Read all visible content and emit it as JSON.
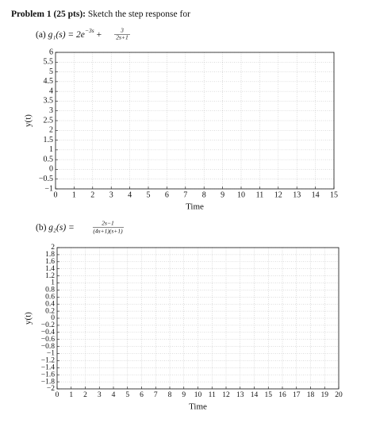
{
  "header": {
    "title": "Problem 1 (25 pts):",
    "text": "Sketch the step response for"
  },
  "chart_data": [
    {
      "type": "line",
      "part": "(a)",
      "function": {
        "lhs": "g₁(s) = 2e",
        "exponent": "−3s",
        "plus": "+",
        "numerator": "3",
        "denominator": "2s+1"
      },
      "xlabel": "Time",
      "ylabel": "y(t)",
      "xlim": [
        0,
        15
      ],
      "ylim": [
        -1,
        6
      ],
      "xticks": [
        0,
        1,
        2,
        3,
        4,
        5,
        6,
        7,
        8,
        9,
        10,
        11,
        12,
        13,
        14,
        15
      ],
      "yticks": [
        {
          "value": -1,
          "label": "−1"
        },
        {
          "value": -0.5,
          "label": "−0.5"
        },
        0,
        0.5,
        1,
        1.5,
        2,
        2.5,
        3,
        3.5,
        4,
        4.5,
        5,
        5.5,
        6
      ],
      "grid": true
    },
    {
      "type": "line",
      "part": "(b)",
      "function": {
        "lhs": "g₂(s) =",
        "numerator": "2s−1",
        "denominator": "(4s+1)(s+1)"
      },
      "xlabel": "Time",
      "ylabel": "y(t)",
      "xlim": [
        0,
        20
      ],
      "ylim": [
        -2,
        2
      ],
      "xticks": [
        0,
        1,
        2,
        3,
        4,
        5,
        6,
        7,
        8,
        9,
        10,
        11,
        12,
        13,
        14,
        15,
        16,
        17,
        18,
        19,
        20
      ],
      "yticks": [
        {
          "value": -2,
          "label": "−2"
        },
        {
          "value": -1.8,
          "label": "−1.8"
        },
        {
          "value": -1.6,
          "label": "−1.6"
        },
        {
          "value": -1.4,
          "label": "−1.4"
        },
        {
          "value": -1.2,
          "label": "−1.2"
        },
        {
          "value": -1,
          "label": "−1"
        },
        {
          "value": -0.8,
          "label": "−0.8"
        },
        {
          "value": -0.6,
          "label": "−0.6"
        },
        {
          "value": -0.4,
          "label": "−0.4"
        },
        {
          "value": -0.2,
          "label": "−0.2"
        },
        0,
        0.2,
        0.4,
        0.6,
        0.8,
        1,
        1.2,
        1.4,
        1.6,
        1.8,
        2
      ],
      "grid": true
    }
  ]
}
